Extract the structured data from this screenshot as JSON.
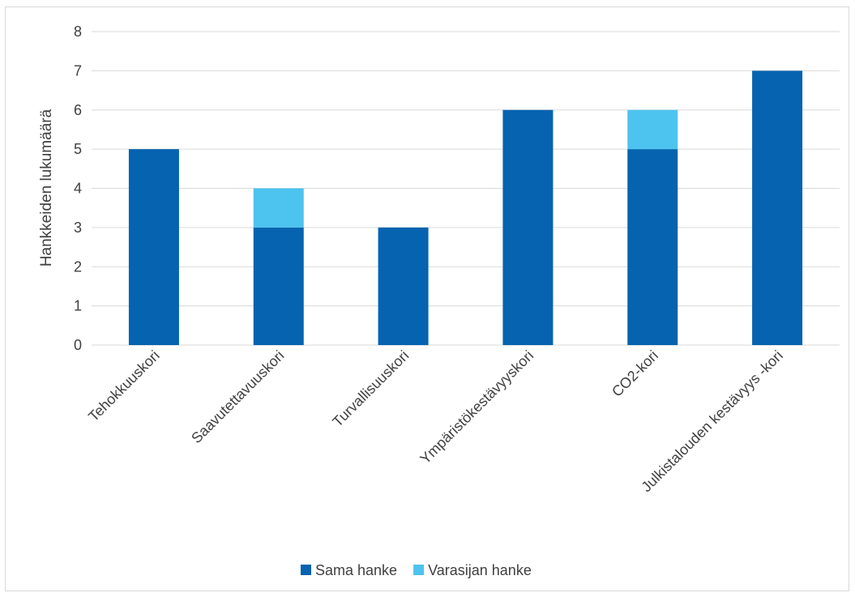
{
  "chart_data": {
    "type": "bar",
    "stacked": true,
    "categories": [
      "Tehokkuuskori",
      "Saavutettavuuskori",
      "Turvallisuuskori",
      "Ympäristökestävyyskori",
      "CO2-kori",
      "Julkistalouden kestävyys -kori"
    ],
    "series": [
      {
        "name": "Sama hanke",
        "values": [
          5,
          3,
          3,
          6,
          5,
          7
        ],
        "color": "#0563b0"
      },
      {
        "name": "Varasijan hanke",
        "values": [
          0,
          1,
          0,
          0,
          1,
          0
        ],
        "color": "#4dc3ef"
      }
    ],
    "title": "",
    "xlabel": "",
    "ylabel": "Hankkeiden lukumäärä",
    "ylim": [
      0,
      8
    ],
    "yticks": [
      0,
      1,
      2,
      3,
      4,
      5,
      6,
      7,
      8
    ],
    "grid": true,
    "legend_position": "bottom"
  }
}
